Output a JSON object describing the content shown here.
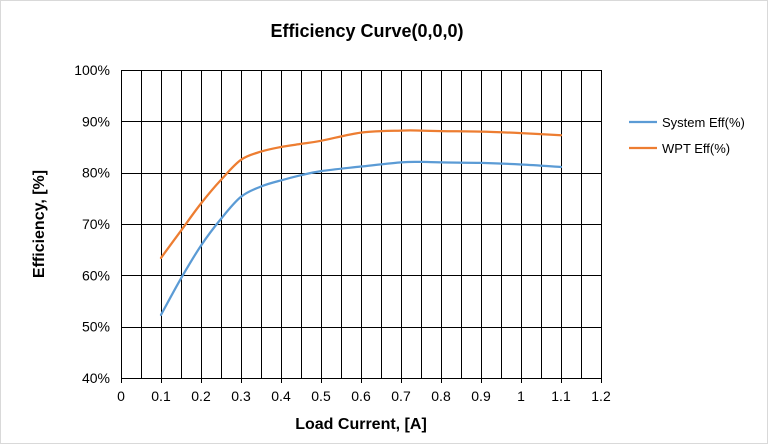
{
  "chart_data": {
    "type": "line",
    "title": "Efficiency Curve(0,0,0)",
    "xlabel": "Load Current, [A]",
    "ylabel": "Efficiency, [%]",
    "xlim": [
      0,
      1.2
    ],
    "ylim": [
      40,
      100
    ],
    "x_ticks": [
      0,
      0.1,
      0.2,
      0.3,
      0.4,
      0.5,
      0.6,
      0.7,
      0.8,
      0.9,
      1,
      1.1,
      1.2
    ],
    "x_tick_labels": [
      "0",
      "0.1",
      "0.2",
      "0.3",
      "0.4",
      "0.5",
      "0.6",
      "0.7",
      "0.8",
      "0.9",
      "1",
      "1.1",
      "1.2"
    ],
    "y_ticks": [
      40,
      50,
      60,
      70,
      80,
      90,
      100
    ],
    "y_tick_labels": [
      "40%",
      "50%",
      "60%",
      "70%",
      "80%",
      "90%",
      "100%"
    ],
    "grid": true,
    "legend_position": "right",
    "series": [
      {
        "name": "System Eff(%)",
        "color": "#5b9bd5",
        "x": [
          0.1,
          0.15,
          0.2,
          0.25,
          0.3,
          0.35,
          0.4,
          0.45,
          0.5,
          0.6,
          0.7,
          0.75,
          0.8,
          0.9,
          1.0,
          1.1
        ],
        "values": [
          52.3,
          59.4,
          65.8,
          71.0,
          75.3,
          77.3,
          78.5,
          79.5,
          80.3,
          81.2,
          82.0,
          82.1,
          82.0,
          81.9,
          81.6,
          81.1
        ]
      },
      {
        "name": "WPT Eff(%)",
        "color": "#ed7d31",
        "x": [
          0.1,
          0.15,
          0.2,
          0.25,
          0.3,
          0.35,
          0.4,
          0.45,
          0.5,
          0.6,
          0.7,
          0.75,
          0.8,
          0.9,
          1.0,
          1.1
        ],
        "values": [
          63.4,
          68.7,
          74.0,
          78.6,
          82.5,
          84.1,
          85.0,
          85.6,
          86.2,
          87.8,
          88.2,
          88.2,
          88.1,
          88.0,
          87.7,
          87.3
        ]
      }
    ]
  }
}
